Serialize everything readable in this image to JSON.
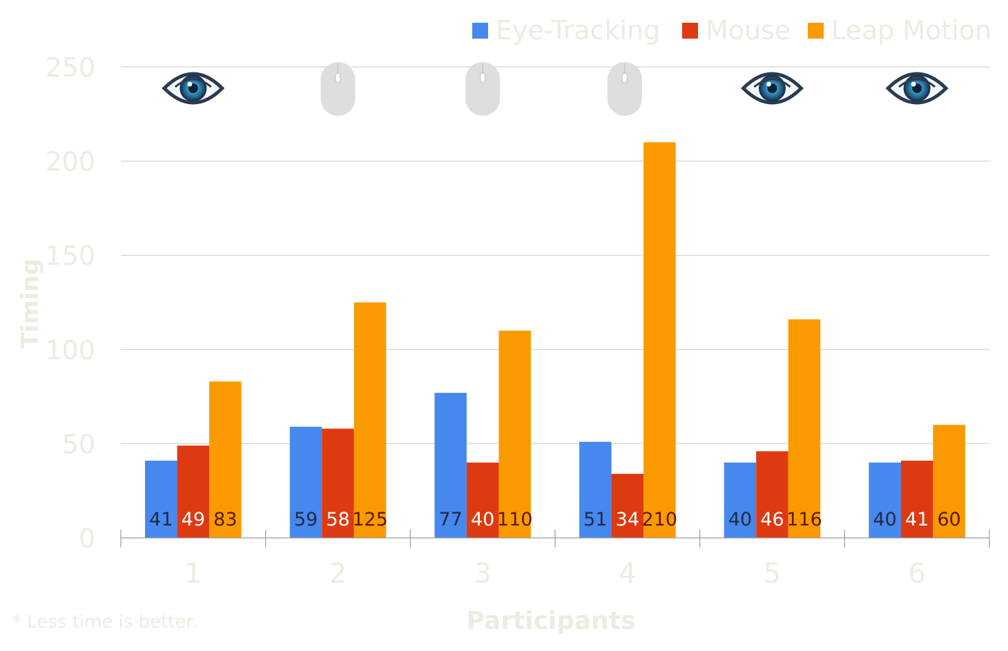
{
  "chart_data": {
    "type": "bar",
    "categories": [
      "1",
      "2",
      "3",
      "4",
      "5",
      "6"
    ],
    "series": [
      {
        "name": "Eye-Tracking",
        "color": "#4688ee",
        "label_color": "#1f2a44",
        "values": [
          41,
          59,
          77,
          51,
          40,
          40
        ]
      },
      {
        "name": "Mouse",
        "color": "#dd3a12",
        "label_color": "#ffffff",
        "values": [
          49,
          58,
          40,
          34,
          46,
          41
        ]
      },
      {
        "name": "Leap Motion",
        "color": "#fb9a00",
        "label_color": "#5a1a00",
        "values": [
          83,
          125,
          110,
          210,
          116,
          60
        ]
      }
    ],
    "xlabel": "Participants",
    "ylabel": "Timing",
    "ylim": [
      0,
      250
    ],
    "yticks": [
      0,
      50,
      100,
      150,
      200,
      250
    ],
    "grid": true,
    "legend_position": "top-right",
    "winner_icons": [
      "eye-icon",
      "mouse-icon",
      "mouse-icon",
      "mouse-icon",
      "eye-icon",
      "eye-icon"
    ],
    "footnote": "* Less time is better."
  }
}
